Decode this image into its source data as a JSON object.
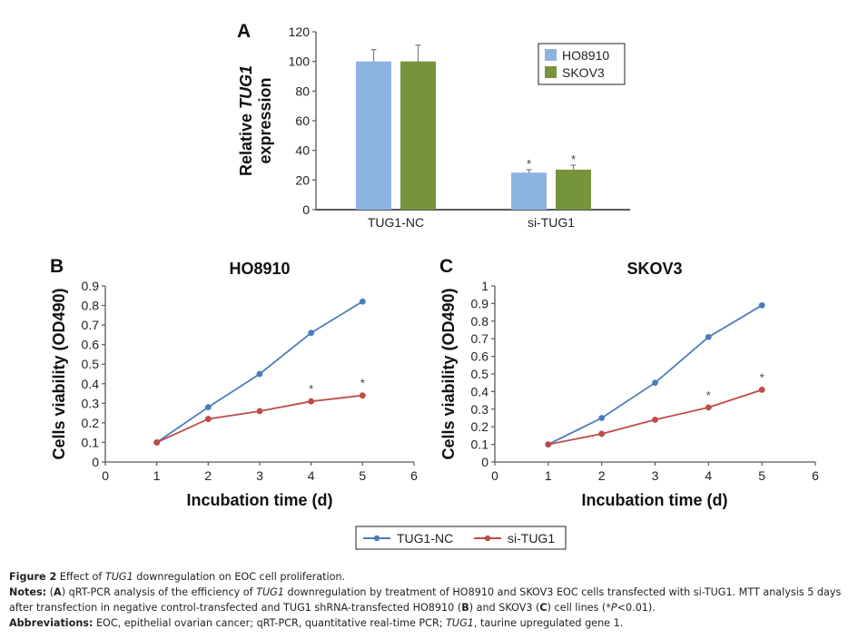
{
  "colors": {
    "HO8910_bar": "#8db3e2",
    "SKOV3_bar": "#77933c",
    "TUG1_NC_line": "#4a7ebb",
    "si_TUG1_line": "#be4b48",
    "axis": "#595959"
  },
  "chart_data": [
    {
      "panel": "A",
      "type": "bar",
      "title": "",
      "xlabel": "",
      "ylabel_parts": [
        "Relative ",
        "TUG1",
        "expression"
      ],
      "ylabel": "Relative TUG1 expression",
      "categories": [
        "TUG1-NC",
        "si-TUG1"
      ],
      "series": [
        {
          "name": "HO8910",
          "values": [
            100,
            25
          ],
          "error_upper": [
            108,
            27
          ],
          "significance": [
            "",
            "*"
          ]
        },
        {
          "name": "SKOV3",
          "values": [
            100,
            27
          ],
          "error_upper": [
            111,
            30
          ],
          "significance": [
            "",
            "*"
          ]
        }
      ],
      "ylim": [
        0,
        120
      ],
      "yticks": [
        "0",
        "20",
        "40",
        "60",
        "80",
        "100",
        "120"
      ],
      "legend": [
        "HO8910",
        "SKOV3"
      ],
      "legend_position": "top-right",
      "grid": false
    },
    {
      "panel": "B",
      "type": "line",
      "title": "HO8910",
      "xlabel": "Incubation time (d)",
      "ylabel": "Cells viability (OD490)",
      "x": [
        1,
        2,
        3,
        4,
        5
      ],
      "series": [
        {
          "name": "TUG1-NC",
          "values": [
            0.1,
            0.28,
            0.45,
            0.66,
            0.82
          ],
          "significance": [
            "",
            "",
            "",
            "",
            ""
          ]
        },
        {
          "name": "si-TUG1",
          "values": [
            0.1,
            0.22,
            0.26,
            0.31,
            0.34
          ],
          "significance": [
            "",
            "",
            "",
            "*",
            "*"
          ]
        }
      ],
      "xlim": [
        0,
        6
      ],
      "ylim": [
        0,
        0.9
      ],
      "xticks": [
        "0",
        "1",
        "2",
        "3",
        "4",
        "5",
        "6"
      ],
      "yticks": [
        "0",
        "0.1",
        "0.2",
        "0.3",
        "0.4",
        "0.5",
        "0.6",
        "0.7",
        "0.8",
        "0.9"
      ],
      "grid": false
    },
    {
      "panel": "C",
      "type": "line",
      "title": "SKOV3",
      "xlabel": "Incubation time (d)",
      "ylabel": "Cells viability (OD490)",
      "x": [
        1,
        2,
        3,
        4,
        5
      ],
      "series": [
        {
          "name": "TUG1-NC",
          "values": [
            0.1,
            0.25,
            0.45,
            0.71,
            0.89
          ],
          "significance": [
            "",
            "",
            "",
            "",
            ""
          ]
        },
        {
          "name": "si-TUG1",
          "values": [
            0.1,
            0.16,
            0.24,
            0.31,
            0.41
          ],
          "significance": [
            "",
            "",
            "",
            "*",
            "*"
          ]
        }
      ],
      "xlim": [
        0,
        6
      ],
      "ylim": [
        0,
        1
      ],
      "xticks": [
        "0",
        "1",
        "2",
        "3",
        "4",
        "5",
        "6"
      ],
      "yticks": [
        "0",
        "0.1",
        "0.2",
        "0.3",
        "0.4",
        "0.5",
        "0.6",
        "0.7",
        "0.8",
        "0.9",
        "1"
      ],
      "grid": false
    }
  ],
  "shared_legend": {
    "items": [
      "TUG1-NC",
      "si-TUG1"
    ],
    "position": "bottom-center"
  },
  "caption": {
    "figure_label": "Figure 2",
    "figure_text_pre": " Effect of ",
    "figure_text_italic": "TUG1",
    "figure_text_post": " downregulation on EOC cell proliferation.",
    "notes_label": "Notes:",
    "notes_A_open": " (",
    "notes_A": "A",
    "notes_1": ") qRT-PCR analysis of the efficiency of ",
    "notes_italic": "TUG1",
    "notes_2": " downregulation by treatment of HO8910 and SKOV3 EOC cells transfected with si-TUG1. MTT analysis 5 days after transfection in negative control-transfected and TUG1 shRNA-transfected HO8910 (",
    "notes_B": "B",
    "notes_3": ") and SKOV3 (",
    "notes_C": "C",
    "notes_4": ") cell lines (*",
    "notes_P": "P",
    "notes_5": "<0.01).",
    "abbrev_label": "Abbreviations:",
    "abbrev_1": " EOC, epithelial ovarian cancer; qRT-PCR, quantitative real-time PCR; ",
    "abbrev_italic": "TUG1",
    "abbrev_2": ", taurine upregulated gene 1."
  }
}
